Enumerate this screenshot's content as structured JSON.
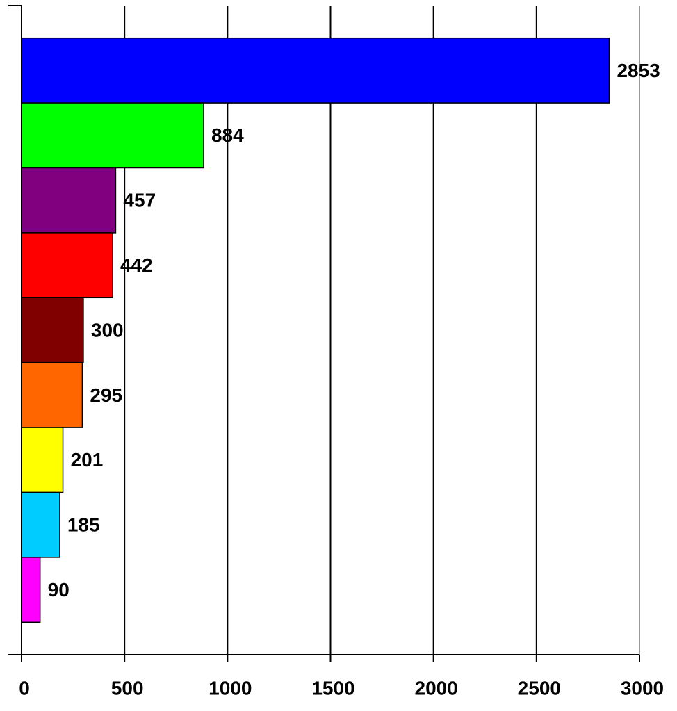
{
  "chart_data": {
    "type": "barh",
    "values": [
      2853,
      884,
      457,
      442,
      300,
      295,
      201,
      185,
      90
    ],
    "colors": [
      "#0000ff",
      "#00ff00",
      "#800080",
      "#ff0000",
      "#800000",
      "#ff6600",
      "#ffff00",
      "#00ccff",
      "#ff00ff"
    ],
    "xlim": [
      0,
      3000
    ],
    "xticks": [
      0,
      500,
      1000,
      1500,
      2000,
      2500,
      3000
    ],
    "grid": true
  }
}
